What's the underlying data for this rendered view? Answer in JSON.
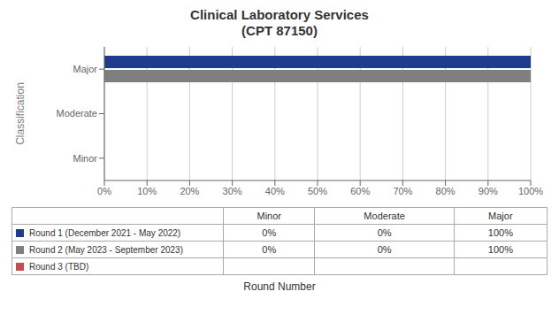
{
  "chart_data": {
    "type": "bar",
    "orientation": "horizontal",
    "title": "Clinical Laboratory Services\n(CPT 87150)",
    "xlabel": "Round Number",
    "ylabel": "Classification",
    "categories": [
      "Minor",
      "Moderate",
      "Major"
    ],
    "series": [
      {
        "name": "Round 1 (December 2021 - May 2022)",
        "color": "#1F3B8C",
        "values": [
          0,
          0,
          100
        ],
        "value_labels": [
          "0%",
          "0%",
          "100%"
        ]
      },
      {
        "name": "Round 2 (May 2023 - September 2023)",
        "color": "#7F7F7F",
        "values": [
          0,
          0,
          100
        ],
        "value_labels": [
          "0%",
          "0%",
          "100%"
        ]
      },
      {
        "name": "Round 3 (TBD)",
        "color": "#C0504D",
        "values": [
          null,
          null,
          null
        ],
        "value_labels": [
          null,
          null,
          null
        ]
      }
    ],
    "xlim": [
      0,
      100
    ],
    "xticks": [
      {
        "value": 0,
        "label": "0%"
      },
      {
        "value": 10,
        "label": "10%"
      },
      {
        "value": 20,
        "label": "20%"
      },
      {
        "value": 30,
        "label": "30%"
      },
      {
        "value": 40,
        "label": "40%"
      },
      {
        "value": 50,
        "label": "50%"
      },
      {
        "value": 60,
        "label": "60%"
      },
      {
        "value": 70,
        "label": "70%"
      },
      {
        "value": 80,
        "label": "80%"
      },
      {
        "value": 90,
        "label": "90%"
      },
      {
        "value": 100,
        "label": "100%"
      }
    ],
    "grid": true
  }
}
